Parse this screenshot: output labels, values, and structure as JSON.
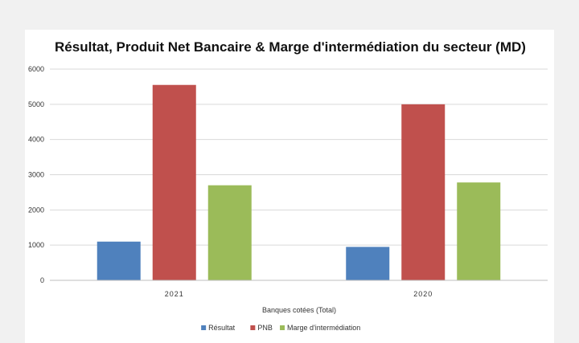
{
  "chart_data": {
    "type": "bar",
    "title": "Résultat, Produit Net Bancaire & Marge d'intermédiation du secteur (MD)",
    "xlabel": "Banques cotées (Total)",
    "ylabel": "",
    "categories": [
      "2021",
      "2020"
    ],
    "series": [
      {
        "name": "Résultat",
        "color": "#4f81bd",
        "values": [
          1100,
          950
        ]
      },
      {
        "name": "PNB",
        "color": "#c0504d",
        "values": [
          5550,
          5000
        ]
      },
      {
        "name": "Marge d'intermédiation",
        "color": "#9bbb59",
        "values": [
          2700,
          2780
        ]
      }
    ],
    "ylim": [
      0,
      6000
    ],
    "yticks": [
      0,
      1000,
      2000,
      3000,
      4000,
      5000,
      6000
    ],
    "grid": true,
    "legend": "bottom"
  }
}
